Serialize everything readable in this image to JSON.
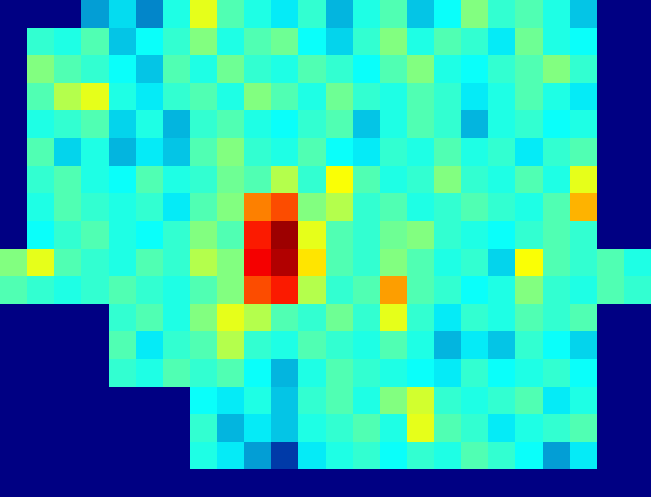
{
  "chart_data": {
    "type": "heatmap",
    "color": "Jet",
    "tick_labels": false,
    "xlim": [
      -0.5,
      23.5
    ],
    "ylim": [
      17.5,
      -0.5
    ],
    "zlim": [
      0,
      1
    ],
    "cells": [
      [
        0,
        0,
        0,
        0.25,
        0.33,
        0.22,
        0.4,
        0.6,
        0.45,
        0.4,
        0.35,
        0.42,
        0.28,
        0.4,
        0.45,
        0.3,
        0.38,
        0.5,
        0.42,
        0.45,
        0.4,
        0.3,
        0,
        0
      ],
      [
        0,
        0.42,
        0.4,
        0.45,
        0.3,
        0.38,
        0.42,
        0.5,
        0.4,
        0.45,
        0.48,
        0.38,
        0.32,
        0.42,
        0.5,
        0.4,
        0.45,
        0.42,
        0.35,
        0.48,
        0.4,
        0.38,
        0,
        0
      ],
      [
        0,
        0.5,
        0.45,
        0.42,
        0.38,
        0.3,
        0.45,
        0.4,
        0.48,
        0.42,
        0.4,
        0.45,
        0.42,
        0.38,
        0.45,
        0.5,
        0.4,
        0.38,
        0.42,
        0.45,
        0.5,
        0.42,
        0,
        0
      ],
      [
        0,
        0.45,
        0.55,
        0.6,
        0.4,
        0.35,
        0.42,
        0.45,
        0.4,
        0.5,
        0.45,
        0.4,
        0.48,
        0.42,
        0.4,
        0.45,
        0.42,
        0.35,
        0.4,
        0.45,
        0.4,
        0.35,
        0,
        0
      ],
      [
        0,
        0.4,
        0.42,
        0.45,
        0.32,
        0.4,
        0.28,
        0.42,
        0.45,
        0.4,
        0.38,
        0.42,
        0.45,
        0.3,
        0.4,
        0.45,
        0.42,
        0.28,
        0.4,
        0.42,
        0.38,
        0.4,
        0,
        0
      ],
      [
        0,
        0.45,
        0.32,
        0.4,
        0.28,
        0.35,
        0.3,
        0.45,
        0.5,
        0.42,
        0.4,
        0.45,
        0.38,
        0.35,
        0.42,
        0.4,
        0.45,
        0.4,
        0.42,
        0.35,
        0.42,
        0.45,
        0,
        0
      ],
      [
        0,
        0.42,
        0.45,
        0.4,
        0.38,
        0.45,
        0.4,
        0.42,
        0.48,
        0.45,
        0.55,
        0.42,
        0.62,
        0.45,
        0.4,
        0.42,
        0.5,
        0.42,
        0.4,
        0.45,
        0.4,
        0.6,
        0,
        0
      ],
      [
        0,
        0.4,
        0.45,
        0.42,
        0.4,
        0.42,
        0.35,
        0.45,
        0.5,
        0.75,
        0.8,
        0.5,
        0.55,
        0.42,
        0.45,
        0.4,
        0.42,
        0.45,
        0.42,
        0.4,
        0.45,
        0.7,
        0,
        0
      ],
      [
        0,
        0.38,
        0.42,
        0.45,
        0.4,
        0.38,
        0.42,
        0.5,
        0.45,
        0.85,
        0.97,
        0.6,
        0.45,
        0.42,
        0.48,
        0.5,
        0.42,
        0.4,
        0.38,
        0.42,
        0.45,
        0.42,
        0,
        0
      ],
      [
        0.5,
        0.6,
        0.45,
        0.42,
        0.4,
        0.45,
        0.42,
        0.55,
        0.5,
        0.88,
        0.95,
        0.65,
        0.45,
        0.42,
        0.5,
        0.45,
        0.4,
        0.42,
        0.32,
        0.62,
        0.45,
        0.42,
        0.45,
        0.4
      ],
      [
        0.45,
        0.42,
        0.4,
        0.42,
        0.45,
        0.42,
        0.4,
        0.45,
        0.5,
        0.8,
        0.85,
        0.55,
        0.42,
        0.45,
        0.72,
        0.45,
        0.42,
        0.38,
        0.4,
        0.5,
        0.42,
        0.4,
        0.45,
        0.42
      ],
      [
        0,
        0,
        0,
        0,
        0.42,
        0.45,
        0.4,
        0.5,
        0.6,
        0.55,
        0.45,
        0.42,
        0.48,
        0.42,
        0.6,
        0.42,
        0.35,
        0.42,
        0.4,
        0.45,
        0.42,
        0.45,
        0,
        0
      ],
      [
        0,
        0,
        0,
        0,
        0.45,
        0.35,
        0.42,
        0.45,
        0.55,
        0.42,
        0.4,
        0.45,
        0.42,
        0.4,
        0.45,
        0.4,
        0.28,
        0.35,
        0.3,
        0.42,
        0.38,
        0.32,
        0,
        0
      ],
      [
        0,
        0,
        0,
        0,
        0.42,
        0.4,
        0.45,
        0.42,
        0.45,
        0.38,
        0.28,
        0.4,
        0.45,
        0.42,
        0.4,
        0.38,
        0.35,
        0.42,
        0.38,
        0.4,
        0.42,
        0.38,
        0,
        0
      ],
      [
        0,
        0,
        0,
        0,
        0,
        0,
        0,
        0.38,
        0.35,
        0.4,
        0.3,
        0.42,
        0.45,
        0.4,
        0.5,
        0.58,
        0.42,
        0.4,
        0.42,
        0.45,
        0.35,
        0.4,
        0,
        0
      ],
      [
        0,
        0,
        0,
        0,
        0,
        0,
        0,
        0.42,
        0.28,
        0.35,
        0.3,
        0.4,
        0.42,
        0.45,
        0.4,
        0.6,
        0.45,
        0.42,
        0.35,
        0.4,
        0.42,
        0.45,
        0,
        0
      ],
      [
        0,
        0,
        0,
        0,
        0,
        0,
        0,
        0.4,
        0.35,
        0.25,
        0.12,
        0.35,
        0.4,
        0.42,
        0.38,
        0.42,
        0.4,
        0.45,
        0.42,
        0.38,
        0.25,
        0.35,
        0,
        0
      ],
      [
        0,
        0,
        0,
        0,
        0,
        0,
        0,
        0,
        0,
        0,
        0,
        0,
        0,
        0,
        0,
        0,
        0,
        0,
        0,
        0,
        0,
        0,
        0,
        0
      ]
    ]
  }
}
